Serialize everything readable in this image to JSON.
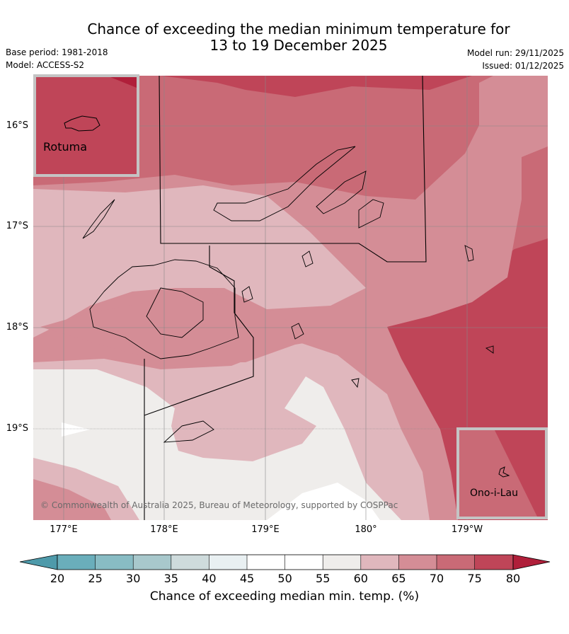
{
  "title_line1": "Chance of exceeding the median minimum temperature for",
  "title_line2": "13 to 19 December 2025",
  "base_period": "Base period: 1981-2018",
  "model": "Model: ACCESS-S2",
  "model_run": "Model run: 29/11/2025",
  "issued": "Issued: 01/12/2025",
  "lat_labels": [
    "16°S",
    "17°S",
    "18°S",
    "19°S"
  ],
  "lon_labels": [
    "177°E",
    "178°E",
    "179°E",
    "180°",
    "179°W"
  ],
  "inset_rotuma": "Rotuma",
  "inset_onoilau": "Ono-i-Lau",
  "credit": "© Commonwealth of Australia 2025, Bureau of Meteorology, supported by COSPPac",
  "colorbar_ticks": [
    "20",
    "25",
    "30",
    "35",
    "40",
    "45",
    "50",
    "55",
    "60",
    "65",
    "70",
    "75",
    "80"
  ],
  "colorbar_title": "Chance of exceeding median min. temp. (%)",
  "colors": {
    "below20": "#4e9aaa",
    "c20_25": "#6aaebb",
    "c25_30": "#88bcc4",
    "c30_35": "#a8c8cc",
    "c35_40": "#cedbdc",
    "c40_45": "#e9f0f2",
    "c45_50": "#ffffff",
    "c50_55": "#ffffff",
    "c55_60": "#efedeb",
    "c60_65": "#e0b7bd",
    "c65_70": "#d48d96",
    "c70_75": "#c96a76",
    "c75_80": "#bf4558",
    "above80": "#b01f3a"
  }
}
